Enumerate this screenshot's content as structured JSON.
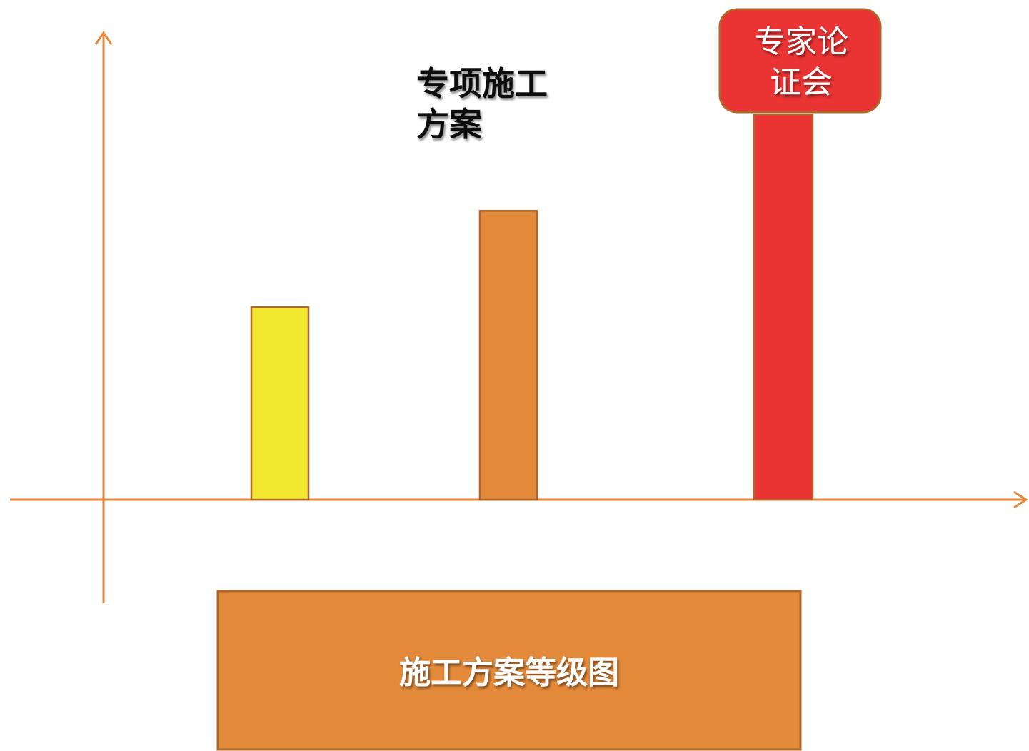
{
  "chart_data": {
    "type": "bar",
    "categories": [
      "",
      "专项施工方案",
      "专家论证会"
    ],
    "values": [
      2.0,
      3.0,
      4.0
    ],
    "ylim": [
      0,
      4.5
    ],
    "grid": false,
    "bar_colors": [
      "#f2e830",
      "#e2893a",
      "#ea3434"
    ],
    "bar_labels": [
      [],
      [
        "专项施工",
        "方案"
      ],
      [
        "专家论",
        "证会"
      ]
    ],
    "title": "施工方案等级图",
    "axis_color": "#e2893a",
    "callout_color": "#ea3434",
    "title_box_color": "#e2893a"
  }
}
